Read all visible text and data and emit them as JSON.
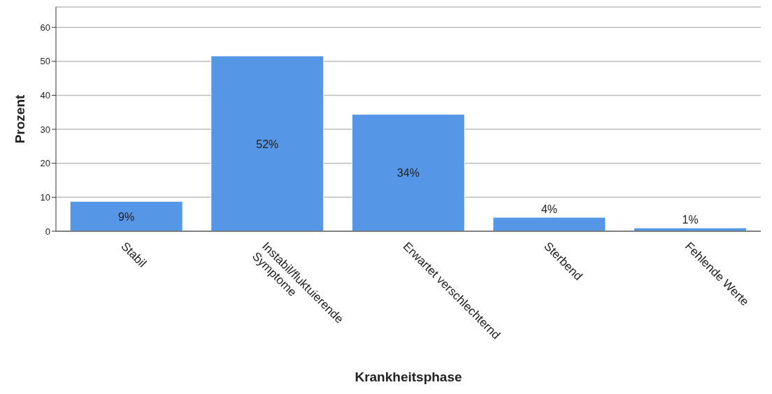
{
  "chart_data": {
    "type": "bar",
    "xlabel": "Krankheitsphase",
    "ylabel": "Prozent",
    "categories": [
      "Stabil",
      "Instabil/fluktuierende Symptome",
      "Erwartet verschlechternd",
      "Sterbend",
      "Fehlende Werte"
    ],
    "values": [
      8.8,
      51.6,
      34.4,
      4.1,
      1.0
    ],
    "value_labels": [
      "9%",
      "52%",
      "34%",
      "4%",
      "1%"
    ],
    "color": "#5596e6",
    "ylim": [
      0,
      66
    ],
    "yticks": [
      0,
      10,
      20,
      30,
      40,
      50,
      60
    ],
    "grid": "y"
  }
}
